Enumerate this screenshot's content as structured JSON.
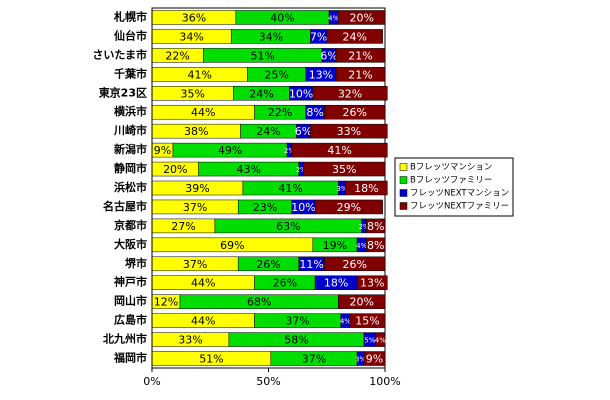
{
  "chart_data": {
    "type": "bar",
    "orientation": "horizontal",
    "stacked": true,
    "categories": [
      "札幌市",
      "仙台市",
      "さいたま市",
      "千葉市",
      "東京23区",
      "横浜市",
      "川崎市",
      "新潟市",
      "静岡市",
      "浜松市",
      "名古屋市",
      "京都市",
      "大阪市",
      "堺市",
      "神戸市",
      "岡山市",
      "広島市",
      "北九州市",
      "福岡市"
    ],
    "series": [
      {
        "name": "Bフレッツマンション",
        "color": "#ffff00",
        "values": [
          36,
          34,
          22,
          41,
          35,
          44,
          38,
          9,
          20,
          39,
          37,
          27,
          69,
          37,
          44,
          12,
          44,
          33,
          51
        ],
        "value_labels": [
          "36%",
          "34%",
          "22%",
          "41%",
          "35%",
          "44%",
          "38%",
          "9%",
          "20%",
          "39%",
          "37%",
          "27%",
          "69%",
          "37%",
          "44%",
          "12%",
          "44%",
          "33%",
          "51%"
        ]
      },
      {
        "name": "Bフレッツファミリー",
        "color": "#00dd00",
        "values": [
          40,
          34,
          51,
          25,
          24,
          22,
          24,
          49,
          43,
          41,
          23,
          63,
          19,
          26,
          26,
          68,
          37,
          58,
          37
        ],
        "value_labels": [
          "40%",
          "34%",
          "51%",
          "25%",
          "24%",
          "22%",
          "24%",
          "49%",
          "43%",
          "41%",
          "23%",
          "63%",
          "19%",
          "26%",
          "26%",
          "68%",
          "37%",
          "58%",
          "37%"
        ]
      },
      {
        "name": "フレッツNEXTマンション",
        "color": "#0000cc",
        "values": [
          4,
          7,
          6,
          13,
          10,
          8,
          6,
          2,
          2,
          3,
          10,
          2,
          4,
          11,
          18,
          0,
          4,
          5,
          3
        ],
        "value_labels": [
          "4%",
          "7%",
          "6%",
          "13%",
          "10%",
          "8%",
          "6%",
          "2%",
          "2%",
          "3%",
          "10%",
          "2%",
          "4%",
          "11%",
          "18%",
          null,
          "4%",
          "5%",
          "3%"
        ]
      },
      {
        "name": "フレッツNEXTファミリー",
        "color": "#800000",
        "values": [
          20,
          24,
          21,
          21,
          32,
          26,
          33,
          41,
          35,
          18,
          29,
          8,
          8,
          26,
          13,
          20,
          15,
          4,
          9
        ],
        "value_labels": [
          "20%",
          "24%",
          "21%",
          "21%",
          "32%",
          "26%",
          "33%",
          "41%",
          "35%",
          "18%",
          "29%",
          "8%",
          "8%",
          "26%",
          "13%",
          "20%",
          "15%",
          "4%",
          "9%"
        ]
      }
    ],
    "xlim": [
      0,
      100
    ],
    "xticks": [
      {
        "value": 0,
        "label": "0%"
      },
      {
        "value": 50,
        "label": "50%"
      },
      {
        "value": 100,
        "label": "100%"
      }
    ],
    "legend": "right"
  }
}
